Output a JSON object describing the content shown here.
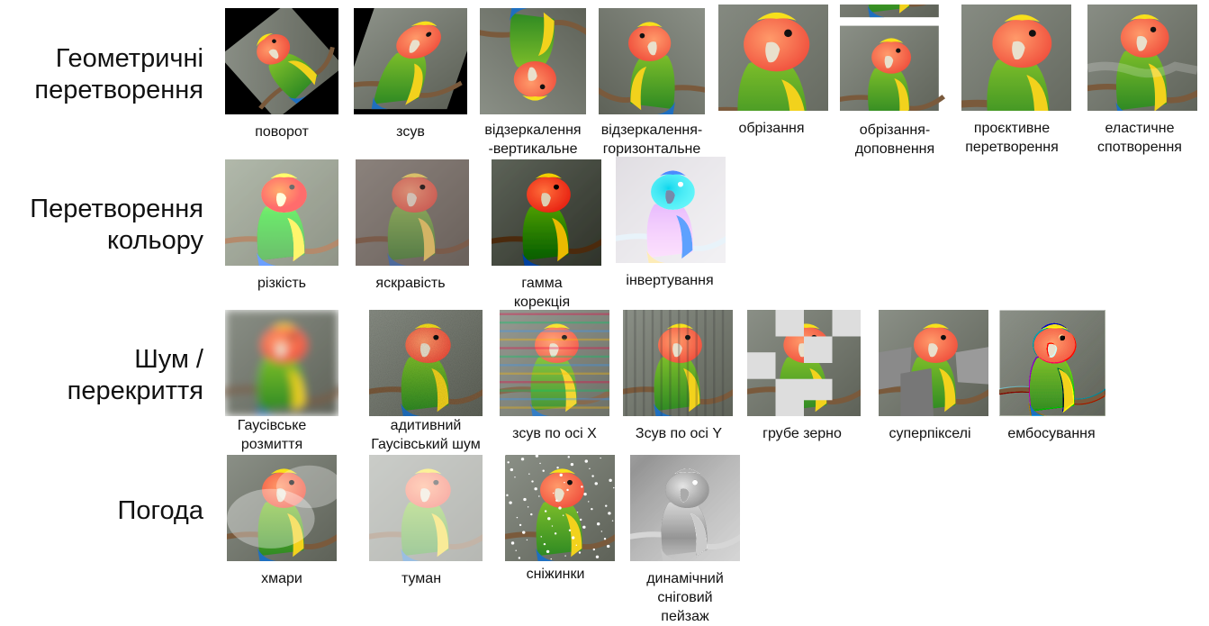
{
  "rows": [
    {
      "title": "Геометричні\nперетворення",
      "items": [
        {
          "caption": "поворот",
          "effect": "rotate"
        },
        {
          "caption": "зсув",
          "effect": "shear"
        },
        {
          "caption": "відзеркалення\n-вертикальне",
          "effect": "vflip"
        },
        {
          "caption": "відзеркалення-\nгоризонтальне",
          "effect": "hflip"
        },
        {
          "caption": "обрізання",
          "effect": "crop"
        },
        {
          "caption": "обрізання-\nдоповнення",
          "effect": "croppad"
        },
        {
          "caption": "проєктивне\nперетворення",
          "effect": "perspective"
        },
        {
          "caption": "еластичне\nспотворення",
          "effect": "elastic"
        }
      ]
    },
    {
      "title": "Перетворення\nкольору",
      "items": [
        {
          "caption": "різкість",
          "effect": "sharpness"
        },
        {
          "caption": "яскравість",
          "effect": "brightness"
        },
        {
          "caption": "гамма\nкорекція",
          "effect": "gamma"
        },
        {
          "caption": "інвертування",
          "effect": "invert"
        }
      ]
    },
    {
      "title": "Шум /перекриття",
      "items": [
        {
          "caption": "Гаусівське\nрозмиття",
          "effect": "blur"
        },
        {
          "caption": "адитивний\nГаусівський шум",
          "effect": "noise"
        },
        {
          "caption": "зсув по осі X",
          "effect": "shiftx"
        },
        {
          "caption": "Зсув по осі Y",
          "effect": "shifty"
        },
        {
          "caption": "грубе зерно",
          "effect": "coarse"
        },
        {
          "caption": "суперпікселі",
          "effect": "superpixels"
        },
        {
          "caption": "ембосування",
          "effect": "emboss"
        }
      ]
    },
    {
      "title": "Погода",
      "items": [
        {
          "caption": "хмари",
          "effect": "clouds"
        },
        {
          "caption": "туман",
          "effect": "fog"
        },
        {
          "caption": "сніжинки",
          "effect": "snowflakes"
        },
        {
          "caption": "динамічний сніговий\nпейзаж",
          "effect": "snowy"
        }
      ]
    }
  ]
}
